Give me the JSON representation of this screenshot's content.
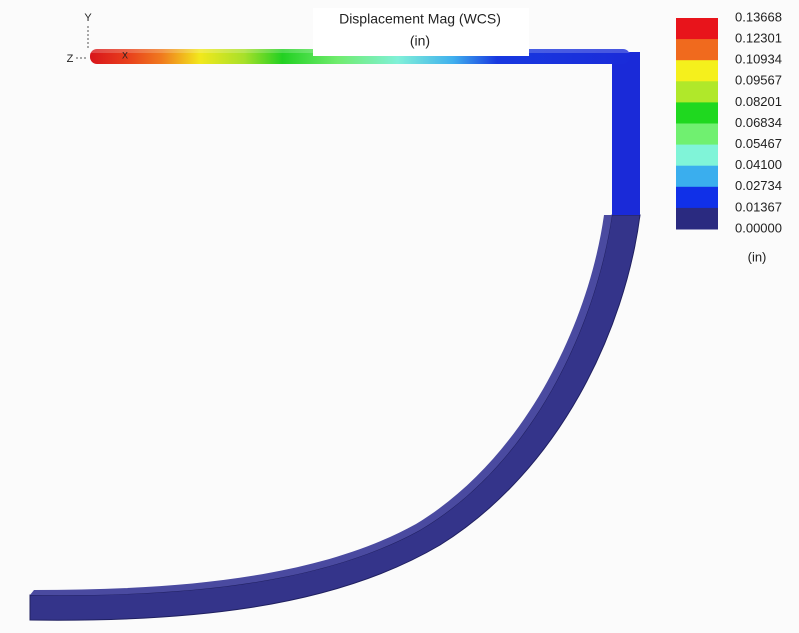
{
  "title": "Displacement Mag (WCS)",
  "subtitle": "(in)",
  "legend": {
    "labels": [
      "0.13668",
      "0.12301",
      "0.10934",
      "0.09567",
      "0.08201",
      "0.06834",
      "0.05467",
      "0.04100",
      "0.02734",
      "0.01367",
      "0.00000"
    ],
    "unit": "(in)"
  },
  "triad": {
    "y": "Y",
    "z": "Z",
    "x": "X"
  }
}
